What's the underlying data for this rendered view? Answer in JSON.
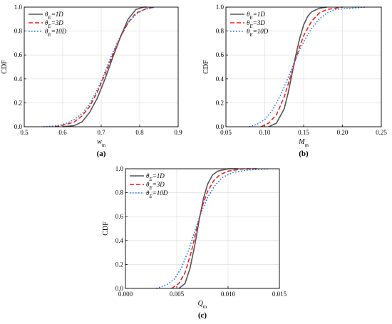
{
  "chart_data": [
    {
      "type": "line",
      "panel_label": "(a)",
      "xlabel": "w",
      "xlabel_sub": "m",
      "ylabel": "CDF",
      "xlim": [
        0.5,
        0.9
      ],
      "ylim": [
        0.0,
        1.0
      ],
      "xticks": [
        "0.5",
        "0.6",
        "0.7",
        "0.8",
        "0.9"
      ],
      "yticks": [
        "0.0",
        "0.2",
        "0.4",
        "0.6",
        "0.8",
        "1.0"
      ],
      "legend": [
        "θE=1D",
        "θE=3D",
        "θE=10D"
      ],
      "legend_placement": "top-left",
      "grid": true,
      "series": [
        {
          "name": "θE=1D",
          "color": "#555555",
          "dash": "solid",
          "x": [
            0.6,
            0.63,
            0.65,
            0.67,
            0.69,
            0.71,
            0.73,
            0.75,
            0.77,
            0.79,
            0.81,
            0.82
          ],
          "y": [
            0.0,
            0.01,
            0.04,
            0.12,
            0.24,
            0.4,
            0.58,
            0.75,
            0.9,
            0.98,
            1.0,
            1.0
          ]
        },
        {
          "name": "θE=3D",
          "color": "#e41a1c",
          "dash": "dashed",
          "x": [
            0.58,
            0.61,
            0.63,
            0.65,
            0.67,
            0.69,
            0.71,
            0.73,
            0.75,
            0.77,
            0.79,
            0.82,
            0.84
          ],
          "y": [
            0.0,
            0.02,
            0.04,
            0.09,
            0.17,
            0.29,
            0.44,
            0.6,
            0.75,
            0.87,
            0.95,
            0.99,
            1.0
          ]
        },
        {
          "name": "θE=10D",
          "color": "#1f6fd6",
          "dash": "dotted",
          "x": [
            0.55,
            0.59,
            0.61,
            0.63,
            0.65,
            0.67,
            0.69,
            0.71,
            0.73,
            0.75,
            0.77,
            0.79,
            0.81,
            0.84
          ],
          "y": [
            0.0,
            0.01,
            0.03,
            0.06,
            0.11,
            0.19,
            0.31,
            0.46,
            0.62,
            0.76,
            0.87,
            0.94,
            0.98,
            1.0
          ]
        }
      ]
    },
    {
      "type": "line",
      "panel_label": "(b)",
      "xlabel": "M",
      "xlabel_sub": "m",
      "ylabel": "CDF",
      "xlim": [
        0.05,
        0.25
      ],
      "ylim": [
        0.0,
        1.0
      ],
      "xticks": [
        "0.05",
        "0.10",
        "0.15",
        "0.20",
        "0.25"
      ],
      "yticks": [
        "0.0",
        "0.2",
        "0.4",
        "0.6",
        "0.8",
        "1.0"
      ],
      "legend": [
        "θE=1D",
        "θE=3D",
        "θE=10D"
      ],
      "legend_placement": "top-left",
      "grid": true,
      "series": [
        {
          "name": "θE=1D",
          "color": "#555555",
          "dash": "solid",
          "x": [
            0.105,
            0.115,
            0.125,
            0.13,
            0.135,
            0.14,
            0.145,
            0.15,
            0.155,
            0.16,
            0.17,
            0.18
          ],
          "y": [
            0.0,
            0.03,
            0.15,
            0.28,
            0.44,
            0.6,
            0.74,
            0.85,
            0.92,
            0.96,
            0.99,
            1.0
          ]
        },
        {
          "name": "θE=3D",
          "color": "#e41a1c",
          "dash": "dashed",
          "x": [
            0.095,
            0.105,
            0.115,
            0.125,
            0.135,
            0.14,
            0.145,
            0.15,
            0.16,
            0.17,
            0.18,
            0.2
          ],
          "y": [
            0.0,
            0.03,
            0.1,
            0.25,
            0.46,
            0.57,
            0.67,
            0.76,
            0.88,
            0.95,
            0.98,
            1.0
          ]
        },
        {
          "name": "θE=10D",
          "color": "#1f6fd6",
          "dash": "dotted",
          "x": [
            0.08,
            0.09,
            0.1,
            0.11,
            0.12,
            0.13,
            0.14,
            0.15,
            0.16,
            0.17,
            0.18,
            0.19,
            0.21,
            0.23
          ],
          "y": [
            0.0,
            0.02,
            0.06,
            0.14,
            0.26,
            0.41,
            0.57,
            0.71,
            0.82,
            0.9,
            0.95,
            0.98,
            0.99,
            1.0
          ]
        }
      ]
    },
    {
      "type": "line",
      "panel_label": "(c)",
      "xlabel": "Q",
      "xlabel_sub": "m",
      "ylabel": "CDF",
      "xlim": [
        0.0,
        0.015
      ],
      "ylim": [
        0.0,
        1.0
      ],
      "xticks": [
        "0.000",
        "0.005",
        "0.010",
        "0.015"
      ],
      "yticks": [
        "0.0",
        "0.2",
        "0.4",
        "0.6",
        "0.8",
        "1.0"
      ],
      "legend": [
        "θE=1D",
        "θE=3D",
        "θE=10D"
      ],
      "legend_placement": "top-left",
      "grid": true,
      "series": [
        {
          "name": "θE=1D",
          "color": "#555555",
          "dash": "solid",
          "x": [
            0.0052,
            0.0058,
            0.0063,
            0.0068,
            0.0072,
            0.0076,
            0.008,
            0.0085,
            0.009,
            0.01,
            0.011
          ],
          "y": [
            0.0,
            0.04,
            0.17,
            0.38,
            0.58,
            0.75,
            0.87,
            0.95,
            0.98,
            1.0,
            1.0
          ]
        },
        {
          "name": "θE=3D",
          "color": "#e41a1c",
          "dash": "dashed",
          "x": [
            0.0045,
            0.0052,
            0.0058,
            0.0064,
            0.007,
            0.0075,
            0.008,
            0.0086,
            0.0092,
            0.01,
            0.0115,
            0.013
          ],
          "y": [
            0.0,
            0.04,
            0.13,
            0.3,
            0.52,
            0.69,
            0.81,
            0.9,
            0.95,
            0.98,
            1.0,
            1.0
          ]
        },
        {
          "name": "θE=10D",
          "color": "#1f6fd6",
          "dash": "dotted",
          "x": [
            0.003,
            0.004,
            0.0048,
            0.0055,
            0.0062,
            0.0068,
            0.0074,
            0.008,
            0.0088,
            0.0095,
            0.0105,
            0.012,
            0.014
          ],
          "y": [
            0.0,
            0.03,
            0.08,
            0.18,
            0.33,
            0.49,
            0.64,
            0.76,
            0.87,
            0.93,
            0.97,
            0.99,
            1.0
          ]
        }
      ]
    }
  ]
}
